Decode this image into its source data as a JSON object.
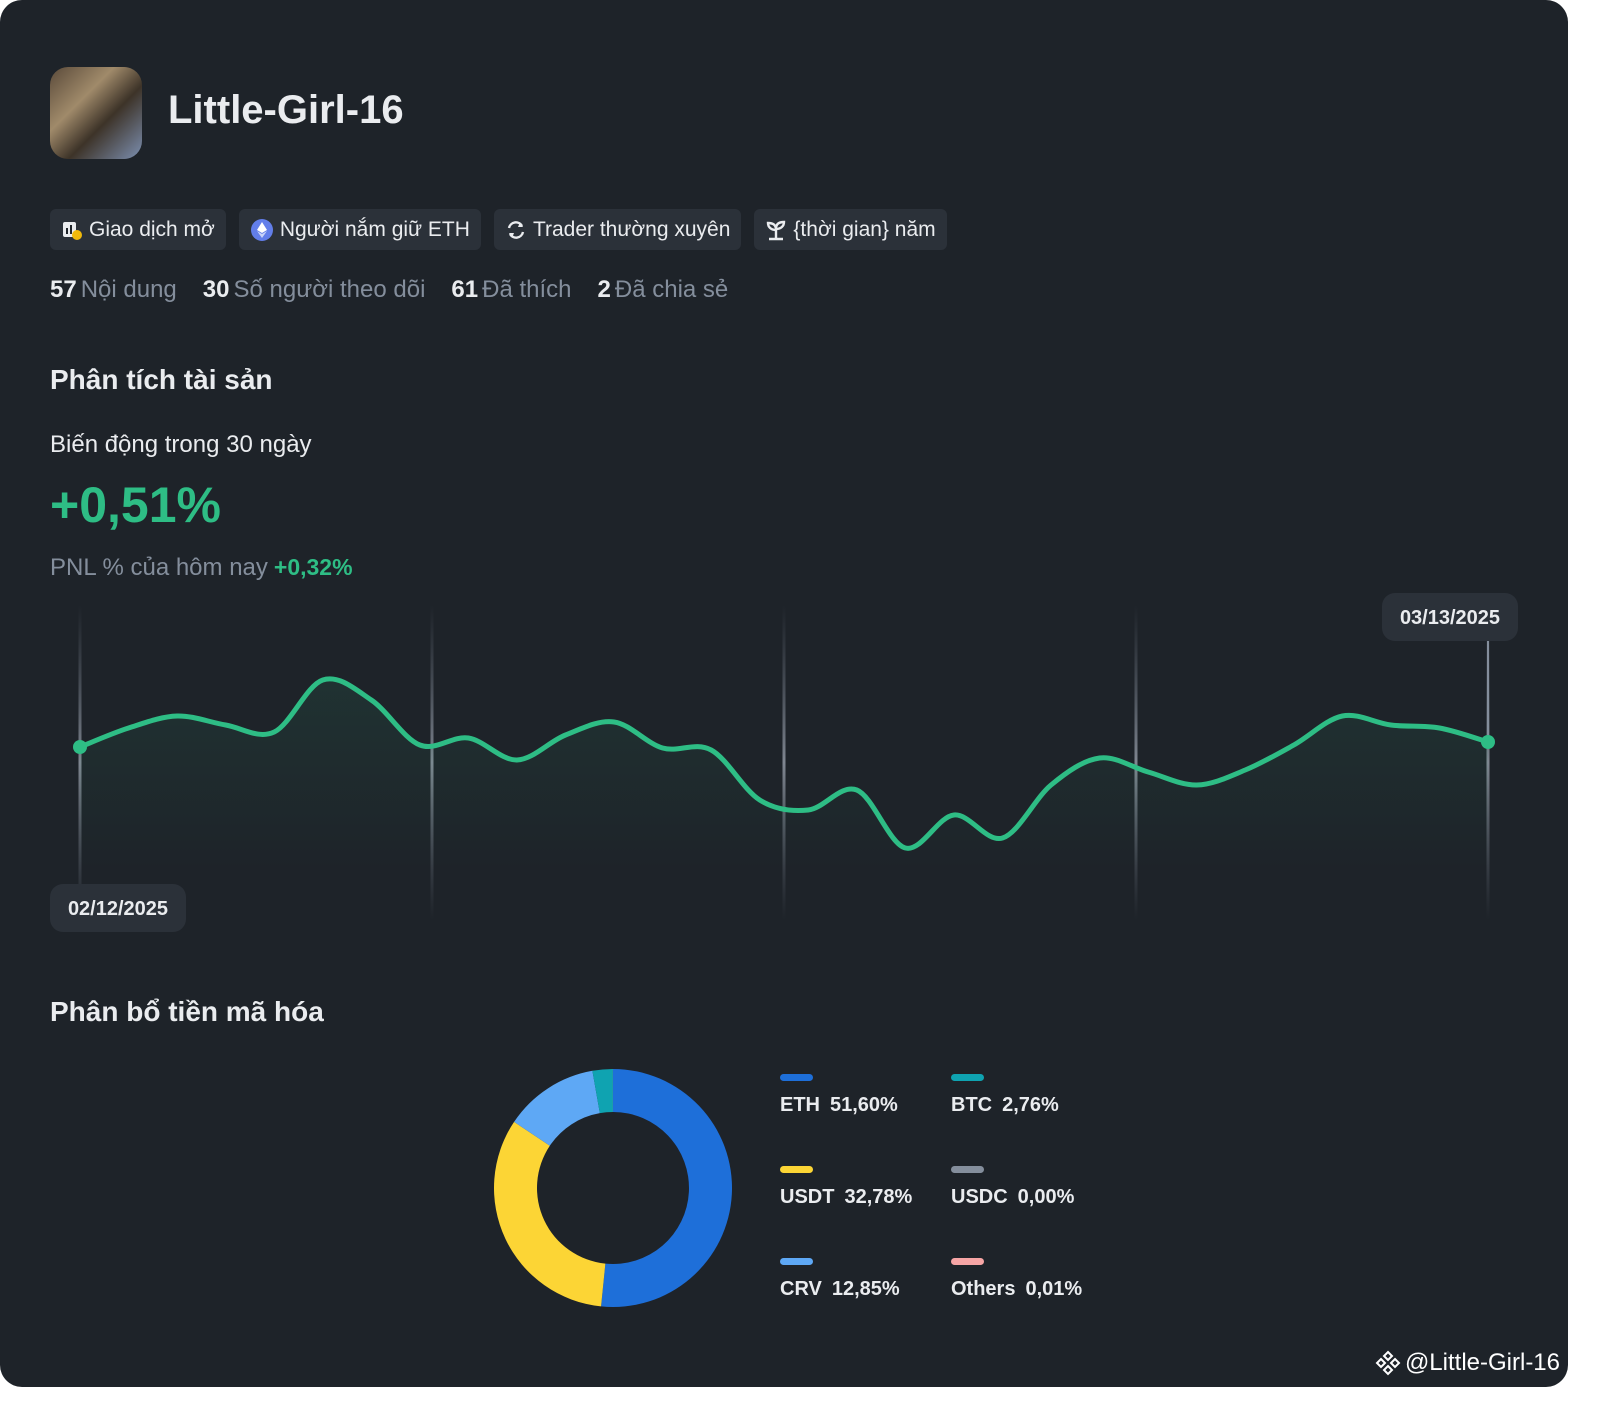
{
  "profile": {
    "name": "Little-Girl-16",
    "badges": [
      "Giao dịch mở",
      "Người nắm giữ ETH",
      "Trader thường xuyên",
      "{thời gian} năm"
    ],
    "stats": [
      {
        "value": 57,
        "label": "Nội dung"
      },
      {
        "value": 30,
        "label": "Số người theo dõi"
      },
      {
        "value": 61,
        "label": "Đã thích"
      },
      {
        "value": 2,
        "label": "Đã chia sẻ"
      }
    ]
  },
  "asset_analysis": {
    "title": "Phân tích tài sản",
    "subtitle": "Biến động trong 30 ngày",
    "change": "+0,51%",
    "pnl_label": "PNL % của hôm nay",
    "pnl_value": "+0,32%"
  },
  "allocation": {
    "title": "Phân bổ tiền mã hóa"
  },
  "footer": {
    "watermark": "@Little-Girl-16"
  },
  "chart_data": [
    {
      "type": "line",
      "x": [
        "02/12/2025",
        null,
        null,
        null,
        null,
        null,
        null,
        null,
        null,
        null,
        null,
        null,
        null,
        null,
        null,
        null,
        null,
        null,
        null,
        null,
        null,
        null,
        null,
        null,
        null,
        null,
        null,
        null,
        null,
        "03/13/2025"
      ],
      "values": [
        173,
        192,
        204,
        195,
        188,
        240,
        220,
        175,
        182,
        160,
        185,
        198,
        172,
        170,
        120,
        110,
        130,
        72,
        105,
        82,
        135,
        162,
        148,
        135,
        150,
        175,
        204,
        195,
        192,
        178
      ],
      "ylim": [
        0,
        315
      ],
      "color": "#2ebd85"
    },
    {
      "type": "pie",
      "categories": [
        "ETH",
        "USDT",
        "CRV",
        "BTC",
        "USDC",
        "Others"
      ],
      "values": [
        51.6,
        32.78,
        12.85,
        2.76,
        0.0,
        0.01
      ],
      "value_labels": [
        "51,60%",
        "32,78%",
        "12,85%",
        "2,76%",
        "0,00%",
        "0,01%"
      ],
      "colors": [
        "#1e6fd9",
        "#fcd535",
        "#5ea8f5",
        "#0fa3b1",
        "#848e9c",
        "#f6a5a5"
      ]
    }
  ]
}
